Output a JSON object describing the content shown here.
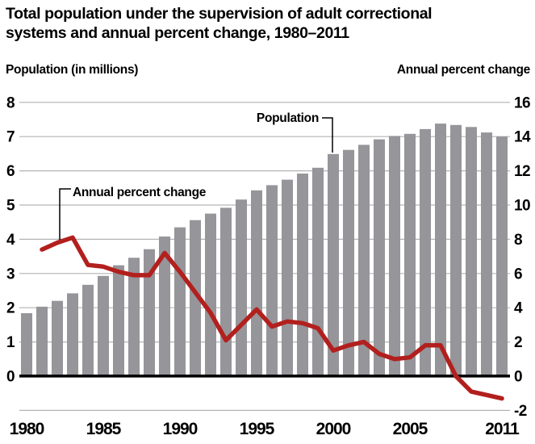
{
  "title": "Total population under the supervision of adult correctional systems and annual percent change, 1980–2011",
  "title_lines": [
    "Total population under the supervision of adult correctional",
    "systems and annual percent change, 1980–2011"
  ],
  "left_axis_title": "Population (in millions)",
  "right_axis_title": "Annual percent change",
  "annotations": {
    "population": "Population",
    "percent_change": "Annual percent change"
  },
  "colors": {
    "bar": "#95959a",
    "line": "#b2201e",
    "grid": "#b3b3b6",
    "zero_axis": "#000000",
    "text": "#000000",
    "background": "#ffffff"
  },
  "chart_data": {
    "type": "bar+line",
    "title": "Total population under the supervision of adult correctional systems and annual percent change, 1980–2011",
    "categories": [
      1980,
      1981,
      1982,
      1983,
      1984,
      1985,
      1986,
      1987,
      1988,
      1989,
      1990,
      1991,
      1992,
      1993,
      1994,
      1995,
      1996,
      1997,
      1998,
      1999,
      2000,
      2001,
      2002,
      2003,
      2004,
      2005,
      2006,
      2007,
      2008,
      2009,
      2010,
      2011
    ],
    "series": [
      {
        "name": "Population (in millions)",
        "type": "bar",
        "axis": "left",
        "color": "#95959a",
        "values": [
          1.84,
          2.03,
          2.2,
          2.42,
          2.67,
          2.93,
          3.24,
          3.46,
          3.71,
          4.08,
          4.35,
          4.56,
          4.75,
          4.92,
          5.16,
          5.43,
          5.58,
          5.74,
          5.92,
          6.09,
          6.49,
          6.61,
          6.76,
          6.92,
          7.02,
          7.08,
          7.22,
          7.38,
          7.34,
          7.28,
          7.12,
          7.0
        ]
      },
      {
        "name": "Annual percent change",
        "type": "line",
        "axis": "right",
        "color": "#b2201e",
        "values": [
          null,
          7.4,
          7.8,
          8.1,
          6.5,
          6.4,
          6.1,
          5.9,
          5.9,
          7.2,
          6.1,
          4.9,
          3.7,
          2.1,
          3.0,
          3.9,
          2.9,
          3.2,
          3.1,
          2.8,
          1.5,
          1.8,
          2.0,
          1.3,
          1.0,
          1.1,
          1.8,
          1.8,
          0.0,
          -0.9,
          -1.1,
          -1.3
        ]
      }
    ],
    "left_axis": {
      "title": "Population (in millions)",
      "ticks": [
        8,
        7,
        6,
        5,
        4,
        3,
        2,
        1,
        0
      ],
      "range": [
        0,
        8
      ]
    },
    "right_axis": {
      "title": "Annual percent change",
      "ticks": [
        16,
        14,
        12,
        10,
        8,
        6,
        4,
        2,
        0,
        -2
      ],
      "range": [
        -2,
        16
      ]
    },
    "x_axis": {
      "tick_labels": [
        "1980",
        "1985",
        "1990",
        "1995",
        "2000",
        "2005",
        "2011"
      ],
      "range": [
        1980,
        2011
      ]
    },
    "grid": true,
    "legend_position": "inline-annotations"
  }
}
